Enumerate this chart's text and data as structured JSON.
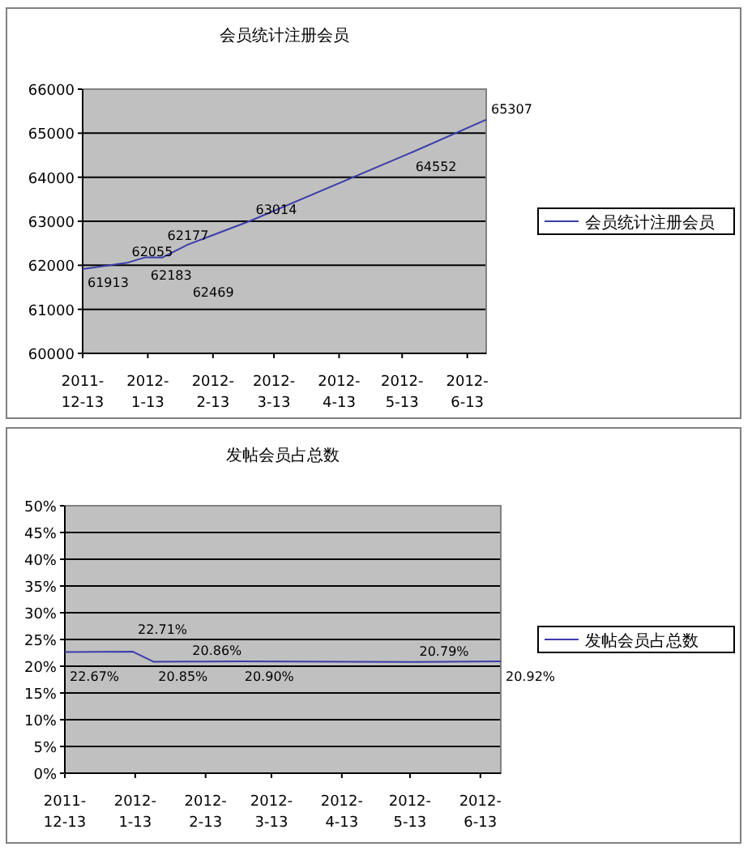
{
  "chart_data": [
    {
      "type": "line",
      "title": "会员统计注册会员",
      "x": [
        "2011-12-13",
        "2012-01-03",
        "2012-01-12",
        "2012-01-20",
        "2012-02-01",
        "2012-03-02",
        "2012-05-17",
        "2012-06-22"
      ],
      "series": [
        {
          "name": "会员统计注册会员",
          "color": "#3c3caa",
          "values": [
            61913,
            62055,
            62183,
            62177,
            62469,
            63014,
            64552,
            65307
          ]
        }
      ],
      "data_labels": true,
      "xlim": [
        "2011-12-13",
        "2012-06-22"
      ],
      "xticks": [
        {
          "value": "2011-12-13",
          "label": "2011-12-13"
        },
        {
          "value": "2012-01-13",
          "label": "2012-1-13"
        },
        {
          "value": "2012-02-13",
          "label": "2012-2-13"
        },
        {
          "value": "2012-03-13",
          "label": "2012-3-13"
        },
        {
          "value": "2012-04-13",
          "label": "2012-4-13"
        },
        {
          "value": "2012-05-13",
          "label": "2012-5-13"
        },
        {
          "value": "2012-06-13",
          "label": "2012-6-13"
        }
      ],
      "ylim": [
        60000,
        66000
      ],
      "yticks": [
        60000,
        61000,
        62000,
        63000,
        64000,
        65000,
        66000
      ],
      "grid": "y",
      "legend": "right"
    },
    {
      "type": "line",
      "title": "发帖会员占总数",
      "x": [
        "2011-12-13",
        "2012-01-12",
        "2012-01-21",
        "2012-02-05",
        "2012-02-28",
        "2012-05-15",
        "2012-06-22"
      ],
      "series": [
        {
          "name": "发帖会员占总数",
          "color": "#3c3caa",
          "values": [
            22.67,
            22.71,
            20.85,
            20.86,
            20.9,
            20.79,
            20.92
          ],
          "value_labels": [
            "22.67%",
            "22.71%",
            "20.85%",
            "20.86%",
            "20.90%",
            "20.79%",
            "20.92%"
          ]
        }
      ],
      "xlim": [
        "2011-12-13",
        "2012-06-22"
      ],
      "xticks": [
        {
          "value": "2011-12-13",
          "label": "2011-12-13"
        },
        {
          "value": "2012-01-13",
          "label": "2012-1-13"
        },
        {
          "value": "2012-02-13",
          "label": "2012-2-13"
        },
        {
          "value": "2012-03-13",
          "label": "2012-3-13"
        },
        {
          "value": "2012-04-13",
          "label": "2012-4-13"
        },
        {
          "value": "2012-05-13",
          "label": "2012-5-13"
        },
        {
          "value": "2012-06-13",
          "label": "2012-6-13"
        }
      ],
      "ylim": [
        0,
        50
      ],
      "yticks": [
        {
          "value": 0,
          "label": "0%"
        },
        {
          "value": 5,
          "label": "5%"
        },
        {
          "value": 10,
          "label": "10%"
        },
        {
          "value": 15,
          "label": "15%"
        },
        {
          "value": 20,
          "label": "20%"
        },
        {
          "value": 25,
          "label": "25%"
        },
        {
          "value": 30,
          "label": "30%"
        },
        {
          "value": 35,
          "label": "35%"
        },
        {
          "value": 40,
          "label": "40%"
        },
        {
          "value": 45,
          "label": "45%"
        },
        {
          "value": 50,
          "label": "50%"
        }
      ],
      "grid": "y",
      "legend": "right"
    }
  ]
}
